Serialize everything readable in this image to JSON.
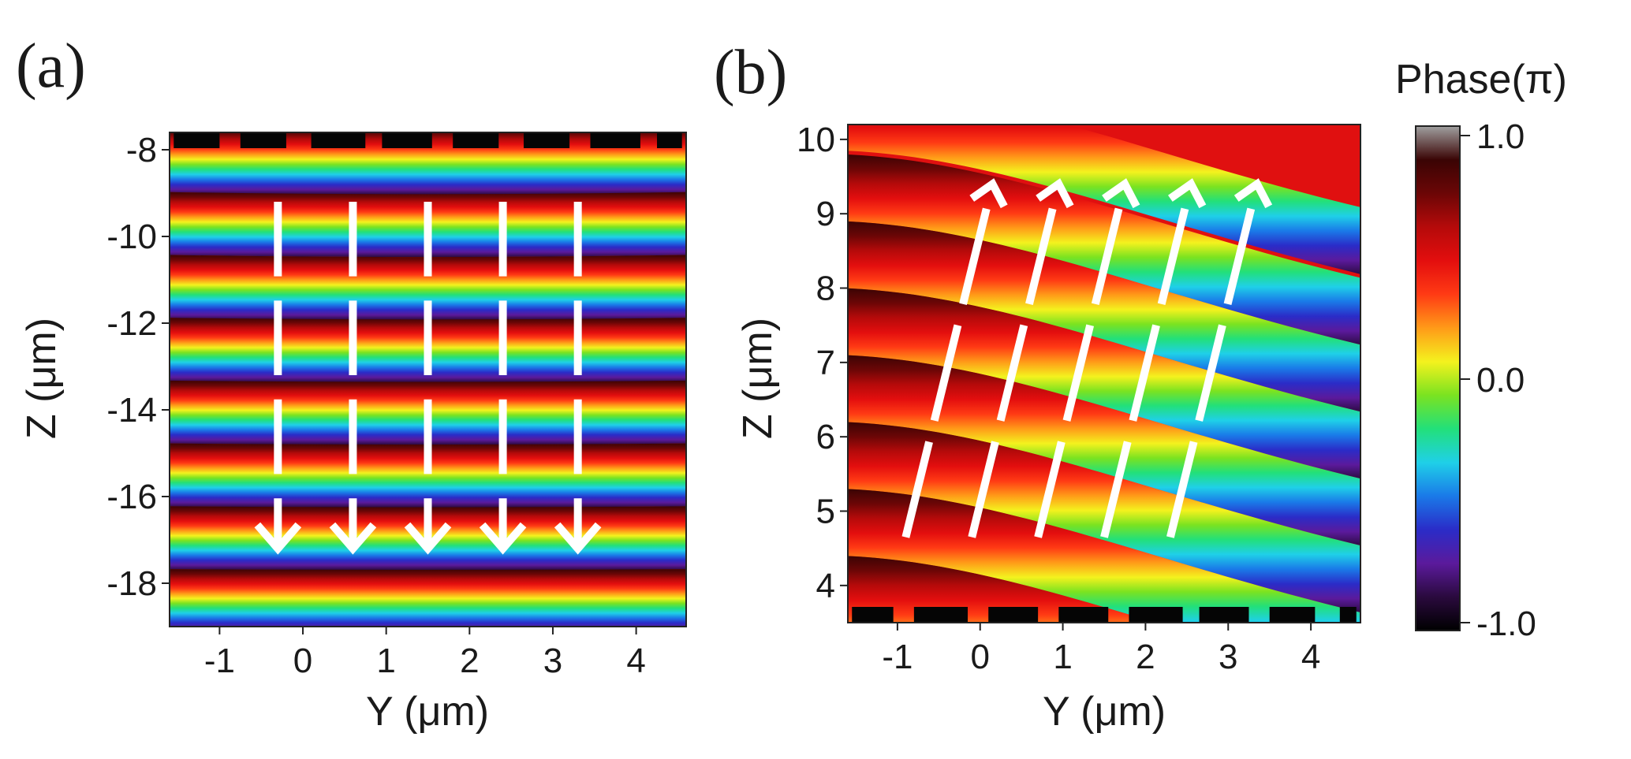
{
  "chart_data": [
    {
      "panel": "(a)",
      "type": "heatmap",
      "xlabel": "Y (μm)",
      "ylabel": "Z (μm)",
      "xlim": [
        -1.6,
        4.6
      ],
      "ylim": [
        -19.0,
        -7.6
      ],
      "xticks": [
        -1,
        0,
        1,
        2,
        3,
        4
      ],
      "yticks": [
        -8,
        -10,
        -12,
        -14,
        -16,
        -18
      ],
      "phase_rows": [
        {
          "z": -8.25,
          "bow": 0.12
        },
        {
          "z": -9.7,
          "bow": 0.1
        },
        {
          "z": -11.15,
          "bow": 0.1
        },
        {
          "z": -12.6,
          "bow": 0.08
        },
        {
          "z": -14.05,
          "bow": 0.06
        },
        {
          "z": -15.5,
          "bow": 0.05
        },
        {
          "z": -16.95,
          "bow": 0.04
        },
        {
          "z": -18.4,
          "bow": 0.03
        }
      ],
      "arrow_direction": "down",
      "arrow_columns_y": [
        -0.3,
        0.6,
        1.5,
        2.4,
        3.3
      ],
      "arrow_z_top": -9.2,
      "arrow_z_tip": -17.2,
      "metasurface_segments": [
        {
          "y0": -1.55,
          "y1": -1.0
        },
        {
          "y0": -0.75,
          "y1": -0.2
        },
        {
          "y0": 0.1,
          "y1": 0.75
        },
        {
          "y0": 0.95,
          "y1": 1.55
        },
        {
          "y0": 1.8,
          "y1": 2.35
        },
        {
          "y0": 2.65,
          "y1": 3.2
        },
        {
          "y0": 3.45,
          "y1": 4.05
        },
        {
          "y0": 4.25,
          "y1": 4.55
        }
      ]
    },
    {
      "panel": "(b)",
      "type": "heatmap",
      "xlabel": "Y (μm)",
      "ylabel": "Z (μm)",
      "xlim": [
        -1.6,
        4.6
      ],
      "ylim": [
        3.5,
        10.2
      ],
      "xticks": [
        -1,
        0,
        1,
        2,
        3,
        4
      ],
      "yticks": [
        10,
        9,
        8,
        7,
        6,
        5,
        4
      ],
      "phase_rows": [
        {
          "z": 10.3
        },
        {
          "z": 9.35
        },
        {
          "z": 8.45
        },
        {
          "z": 7.55
        },
        {
          "z": 6.65
        },
        {
          "z": 5.75
        },
        {
          "z": 4.85
        },
        {
          "z": 3.95
        }
      ],
      "phase_tilt": 0.25,
      "arrow_direction": "up-right",
      "arrow_base_y": [
        -0.9,
        -0.1,
        0.7,
        1.5,
        2.3
      ],
      "arrow_base_z": 4.65,
      "arrow_tip_offset_y": 1.05,
      "arrow_tip_z": 9.4,
      "metasurface_segments": [
        {
          "y0": -1.55,
          "y1": -1.05
        },
        {
          "y0": -0.8,
          "y1": -0.15
        },
        {
          "y0": 0.1,
          "y1": 0.7
        },
        {
          "y0": 0.95,
          "y1": 1.55
        },
        {
          "y0": 1.8,
          "y1": 2.45
        },
        {
          "y0": 2.65,
          "y1": 3.25
        },
        {
          "y0": 3.5,
          "y1": 4.05
        },
        {
          "y0": 4.35,
          "y1": 4.55
        }
      ]
    }
  ],
  "colorbar": {
    "title": "Phase(π)",
    "ticks": [
      1.0,
      0.0,
      -1.0
    ],
    "tick_labels": [
      "1.0",
      "0.0",
      "-1.0"
    ],
    "range": [
      -1.0,
      1.0
    ],
    "colors": [
      "#000000",
      "#2a0a3e",
      "#5b1a9c",
      "#2a2cc8",
      "#1a7ae8",
      "#1fd0e8",
      "#22e07a",
      "#7be320",
      "#f4f21e",
      "#ff9a18",
      "#ff3a14",
      "#e30e0e",
      "#b50a0a",
      "#6b0606",
      "#3a0404",
      "#a0a0a0"
    ]
  },
  "panel_labels": [
    "(a)",
    "(b)"
  ]
}
